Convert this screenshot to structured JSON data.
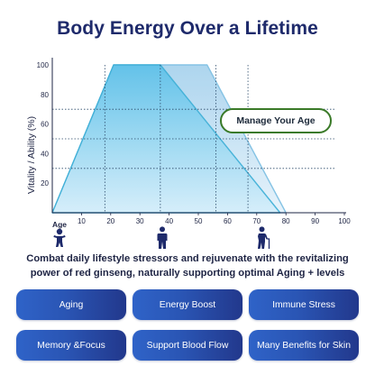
{
  "title": "Body Energy Over a Lifetime",
  "badge": "Manage Your Age",
  "description": "Combat daily lifestyle stressors and rejuvenate with the revitalizing power of red ginseng, naturally supporting optimal Aging + levels",
  "icons": [
    "child-icon",
    "adult-icon",
    "elderly-with-cane-icon"
  ],
  "buttons": [
    {
      "label": "Aging"
    },
    {
      "label": "Energy Boost"
    },
    {
      "label": "Immune Stress"
    },
    {
      "label": "Memory &Focus"
    },
    {
      "label": "Support Blood Flow"
    },
    {
      "label": "Many Benefits for Skin"
    }
  ],
  "colors": {
    "title": "#1e2a6b",
    "curve_front": "#5ec3e8",
    "curve_back": "#b7d9ef",
    "badge_border": "#3a7a28",
    "button": "#2a55b4"
  },
  "chart_data": {
    "type": "area",
    "ylabel": "Vitality / Ability (%)",
    "xlabel": "Age",
    "xlim": [
      0,
      100
    ],
    "ylim": [
      0,
      100
    ],
    "x_ticks": [
      10,
      20,
      30,
      40,
      50,
      60,
      70,
      80,
      90,
      100
    ],
    "y_ticks": [
      20,
      40,
      60,
      80,
      100
    ],
    "series": [
      {
        "x": [
          0,
          21,
          37,
          78
        ],
        "y": [
          0,
          100,
          100,
          0
        ]
      },
      {
        "x": [
          0,
          21,
          53,
          80
        ],
        "y": [
          0,
          100,
          100,
          0
        ]
      }
    ],
    "guide_x": [
      18,
      37,
      56,
      67
    ],
    "guide_y": [
      30,
      50,
      70
    ]
  }
}
